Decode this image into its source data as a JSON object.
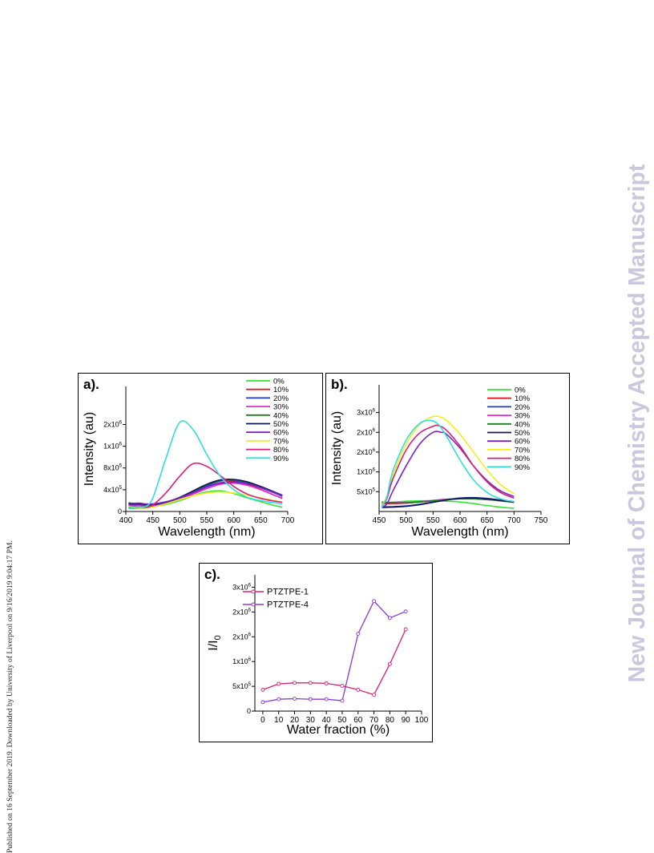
{
  "watermark": {
    "left": "Published on 16 September 2019. Downloaded by University of Liverpool on 9/16/2019 9:04:17 PM.",
    "right": "New Journal of Chemistry Accepted Manuscript"
  },
  "colors": {
    "0%": "#33e633",
    "10%": "#d81e1e",
    "20%": "#1f3ac8",
    "30%": "#e02ae0",
    "40%": "#1f7f1f",
    "50%": "#14145a",
    "60%": "#7a22c8",
    "70%": "#f2ee22",
    "80%": "#d81e78",
    "90%": "#33dede",
    "PTZTPE-1": "#d82070",
    "PTZTPE-4": "#8a3ad6"
  },
  "chart_data": [
    {
      "id": "a",
      "type": "line",
      "panel_label": "a).",
      "xlabel": "Wavelength (nm)",
      "ylabel": "Intensity (au)",
      "xlim": [
        400,
        700
      ],
      "ylim": [
        0,
        2300000
      ],
      "xticks": [
        400,
        450,
        500,
        550,
        600,
        650,
        700
      ],
      "yticks": [
        {
          "value": 0,
          "label": "0"
        },
        {
          "value": 400000,
          "label": "4x10^5"
        },
        {
          "value": 800000,
          "label": "8x10^5"
        },
        {
          "value": 1200000,
          "label": "1x10^6"
        },
        {
          "value": 1600000,
          "label": "2x10^6"
        }
      ],
      "legend_position": "top-right",
      "series": [
        {
          "name": "0%",
          "x": [
            405,
            415,
            425,
            435,
            450,
            475,
            500,
            525,
            550,
            575,
            600,
            625,
            650,
            675,
            690
          ],
          "y": [
            80000,
            70000,
            75000,
            70000,
            90000,
            130000,
            200000,
            290000,
            360000,
            380000,
            330000,
            250000,
            180000,
            110000,
            80000
          ]
        },
        {
          "name": "10%",
          "x": [
            405,
            415,
            425,
            435,
            450,
            475,
            500,
            525,
            550,
            575,
            600,
            625,
            650,
            675,
            690
          ],
          "y": [
            120000,
            110000,
            115000,
            100000,
            110000,
            150000,
            230000,
            340000,
            450000,
            530000,
            550000,
            500000,
            410000,
            300000,
            240000
          ]
        },
        {
          "name": "20%",
          "x": [
            405,
            415,
            425,
            435,
            450,
            475,
            500,
            525,
            550,
            575,
            600,
            625,
            650,
            675,
            690
          ],
          "y": [
            130000,
            120000,
            125000,
            110000,
            115000,
            160000,
            240000,
            360000,
            470000,
            560000,
            570000,
            530000,
            440000,
            340000,
            280000
          ]
        },
        {
          "name": "30%",
          "x": [
            405,
            415,
            425,
            435,
            450,
            475,
            500,
            525,
            550,
            575,
            600,
            625,
            650,
            675,
            690
          ],
          "y": [
            110000,
            100000,
            105000,
            95000,
            100000,
            150000,
            220000,
            320000,
            420000,
            500000,
            520000,
            480000,
            400000,
            300000,
            250000
          ]
        },
        {
          "name": "40%",
          "x": [
            405,
            415,
            425,
            435,
            450,
            475,
            500,
            525,
            550,
            575,
            600,
            625,
            650,
            675,
            690
          ],
          "y": [
            140000,
            130000,
            135000,
            120000,
            125000,
            170000,
            250000,
            370000,
            490000,
            570000,
            580000,
            540000,
            450000,
            350000,
            290000
          ]
        },
        {
          "name": "50%",
          "x": [
            405,
            415,
            425,
            435,
            450,
            475,
            500,
            525,
            550,
            575,
            600,
            625,
            650,
            675,
            690
          ],
          "y": [
            150000,
            140000,
            145000,
            130000,
            130000,
            175000,
            260000,
            380000,
            500000,
            580000,
            590000,
            545000,
            460000,
            360000,
            300000
          ]
        },
        {
          "name": "60%",
          "x": [
            405,
            415,
            425,
            435,
            450,
            475,
            500,
            525,
            550,
            575,
            600,
            625,
            650,
            675,
            690
          ],
          "y": [
            160000,
            150000,
            155000,
            140000,
            140000,
            180000,
            250000,
            350000,
            450000,
            520000,
            540000,
            510000,
            440000,
            350000,
            290000
          ]
        },
        {
          "name": "70%",
          "x": [
            405,
            415,
            425,
            435,
            450,
            475,
            500,
            525,
            550,
            575,
            600,
            625,
            650,
            675,
            690
          ],
          "y": [
            50000,
            50000,
            60000,
            60000,
            80000,
            140000,
            220000,
            290000,
            340000,
            360000,
            340000,
            300000,
            250000,
            200000,
            170000
          ]
        },
        {
          "name": "80%",
          "x": [
            405,
            415,
            425,
            435,
            450,
            475,
            500,
            525,
            550,
            575,
            600,
            625,
            650,
            675,
            690
          ],
          "y": [
            60000,
            60000,
            70000,
            70000,
            120000,
            350000,
            650000,
            880000,
            830000,
            660000,
            460000,
            320000,
            240000,
            190000,
            170000
          ]
        },
        {
          "name": "90%",
          "x": [
            405,
            415,
            425,
            435,
            450,
            475,
            500,
            525,
            550,
            575,
            600,
            625,
            650,
            675,
            690
          ],
          "y": [
            60000,
            60000,
            70000,
            80000,
            250000,
            1000000,
            1640000,
            1500000,
            1050000,
            650000,
            400000,
            260000,
            200000,
            160000,
            140000
          ]
        }
      ]
    },
    {
      "id": "b",
      "type": "line",
      "panel_label": "b).",
      "xlabel": "Wavelength (nm)",
      "ylabel": "Intensity (au)",
      "xlim": [
        450,
        750
      ],
      "ylim": [
        0,
        3200000
      ],
      "xticks": [
        450,
        500,
        550,
        600,
        650,
        700,
        750
      ],
      "yticks": [
        {
          "value": 500000,
          "label": "5x10^5"
        },
        {
          "value": 1000000,
          "label": "1x10^6"
        },
        {
          "value": 1500000,
          "label": "2x10^6"
        },
        {
          "value": 2000000,
          "label": "2x10^6"
        },
        {
          "value": 2500000,
          "label": "3x10^6"
        }
      ],
      "legend_position": "top-right",
      "series": [
        {
          "name": "0%",
          "x": [
            455,
            475,
            500,
            525,
            550,
            575,
            600,
            625,
            650,
            675,
            700
          ],
          "y": [
            180000,
            230000,
            260000,
            270000,
            270000,
            260000,
            240000,
            200000,
            150000,
            110000,
            80000
          ]
        },
        {
          "name": "10%",
          "x": [
            455,
            475,
            500,
            525,
            550,
            575,
            600,
            625,
            650,
            675,
            700
          ],
          "y": [
            200000,
            200000,
            210000,
            240000,
            270000,
            300000,
            320000,
            320000,
            300000,
            270000,
            230000
          ]
        },
        {
          "name": "20%",
          "x": [
            455,
            475,
            500,
            525,
            550,
            575,
            600,
            625,
            650,
            675,
            700
          ],
          "y": [
            120000,
            120000,
            140000,
            180000,
            240000,
            300000,
            340000,
            350000,
            330000,
            290000,
            250000
          ]
        },
        {
          "name": "30%",
          "x": [
            455,
            475,
            500,
            525,
            550,
            575,
            600,
            625,
            650,
            675,
            700
          ],
          "y": [
            240000,
            230000,
            230000,
            250000,
            280000,
            310000,
            330000,
            330000,
            310000,
            270000,
            230000
          ]
        },
        {
          "name": "40%",
          "x": [
            455,
            475,
            500,
            525,
            550,
            575,
            600,
            625,
            650,
            675,
            700
          ],
          "y": [
            230000,
            220000,
            220000,
            240000,
            270000,
            300000,
            320000,
            320000,
            300000,
            270000,
            230000
          ]
        },
        {
          "name": "50%",
          "x": [
            455,
            475,
            500,
            525,
            550,
            575,
            600,
            625,
            650,
            675,
            700
          ],
          "y": [
            100000,
            110000,
            130000,
            170000,
            230000,
            290000,
            330000,
            340000,
            320000,
            280000,
            240000
          ]
        },
        {
          "name": "60%",
          "x": [
            455,
            465,
            475,
            500,
            525,
            550,
            565,
            575,
            600,
            625,
            650,
            675,
            700
          ],
          "y": [
            100000,
            200000,
            500000,
            1150000,
            1700000,
            2000000,
            2000000,
            1950000,
            1600000,
            1150000,
            780000,
            520000,
            380000
          ]
        },
        {
          "name": "70%",
          "x": [
            455,
            465,
            475,
            500,
            525,
            550,
            565,
            575,
            600,
            625,
            650,
            675,
            700
          ],
          "y": [
            150000,
            400000,
            900000,
            1700000,
            2200000,
            2400000,
            2380000,
            2300000,
            1950000,
            1500000,
            1050000,
            680000,
            450000
          ]
        },
        {
          "name": "80%",
          "x": [
            455,
            465,
            475,
            500,
            525,
            550,
            560,
            575,
            600,
            625,
            650,
            675,
            700
          ],
          "y": [
            120000,
            350000,
            800000,
            1550000,
            1980000,
            2150000,
            2170000,
            2050000,
            1650000,
            1150000,
            750000,
            480000,
            340000
          ]
        },
        {
          "name": "90%",
          "x": [
            455,
            465,
            475,
            500,
            525,
            545,
            560,
            575,
            600,
            625,
            650,
            675,
            700
          ],
          "y": [
            100000,
            400000,
            1000000,
            1800000,
            2220000,
            2300000,
            2200000,
            1900000,
            1300000,
            800000,
            480000,
            320000,
            250000
          ]
        }
      ]
    },
    {
      "id": "c",
      "type": "line",
      "panel_label": "c).",
      "xlabel": "Water fraction (%)",
      "ylabel": "I/I0",
      "xlim": [
        -5,
        100
      ],
      "ylim": [
        0,
        2750000
      ],
      "xticks": [
        0,
        10,
        20,
        30,
        40,
        50,
        60,
        70,
        80,
        90,
        100
      ],
      "yticks": [
        {
          "value": 0,
          "label": "0"
        },
        {
          "value": 500000,
          "label": "5x10^5"
        },
        {
          "value": 1000000,
          "label": "1x10^6"
        },
        {
          "value": 1500000,
          "label": "2x10^6"
        },
        {
          "value": 2000000,
          "label": "2x10^6"
        },
        {
          "value": 2500000,
          "label": "3x10^6"
        }
      ],
      "legend_position": "top-left",
      "series": [
        {
          "name": "PTZTPE-1",
          "x": [
            0,
            10,
            20,
            30,
            40,
            50,
            60,
            70,
            80,
            90
          ],
          "y": [
            430000,
            550000,
            570000,
            570000,
            560000,
            510000,
            430000,
            330000,
            950000,
            1650000
          ]
        },
        {
          "name": "PTZTPE-4",
          "x": [
            0,
            10,
            20,
            30,
            40,
            50,
            60,
            70,
            80,
            90
          ],
          "y": [
            180000,
            240000,
            250000,
            240000,
            240000,
            210000,
            1560000,
            2220000,
            1880000,
            2010000
          ]
        }
      ]
    }
  ]
}
